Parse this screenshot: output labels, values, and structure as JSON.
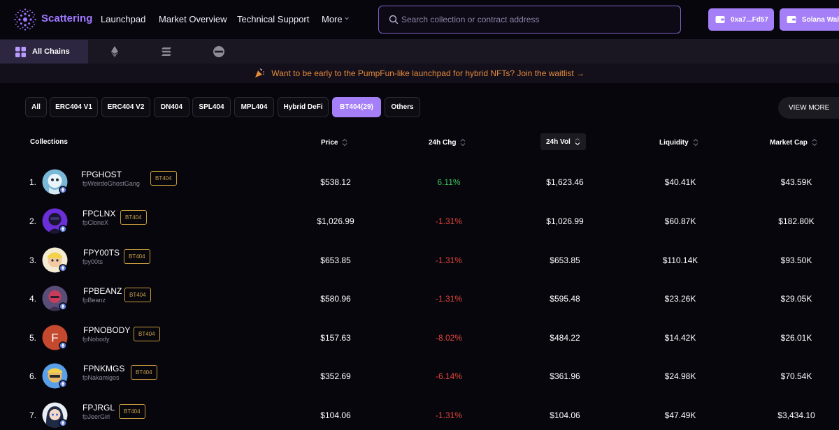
{
  "header": {
    "brand": "Scattering",
    "nav": [
      "Launchpad",
      "Market Overview",
      "Technical Support",
      "More"
    ],
    "search": {
      "placeholder": "Search collection or contract address",
      "value": ""
    },
    "wallet_label": "0xa7...Fd57",
    "solana_label": "Solana Wallet",
    "accent": "#a57ff8"
  },
  "chains": {
    "all_label": "All Chains",
    "icons": [
      "ethereum-icon",
      "solana-icon",
      "other-chain-icon"
    ]
  },
  "banner": {
    "icon": "party-popper-icon",
    "text": "Want to be early to the PumpFun-like launchpad for hybrid NFTs? Join the waitlist →"
  },
  "filters": [
    "All",
    "ERC404 V1",
    "ERC404 V2",
    "DN404",
    "SPL404",
    "MPL404",
    "Hybrid DeFi",
    "BT404(29)",
    "Others"
  ],
  "active_filter": "BT404(29)",
  "view_more_label": "VIEW MORE",
  "table": {
    "columns": [
      "Collections",
      "Price",
      "24h Chg",
      "24h Vol",
      "Liquidity",
      "Market Cap"
    ],
    "sorted_column": "24h Vol",
    "rows": [
      {
        "rank": "1.",
        "name": "FPGHOST",
        "sub": "fpWeirdoGhostGang",
        "badge": "BT404",
        "price": "$538.12",
        "change": "6.11%",
        "volume": "$1,623.46",
        "liquidity": "$40.41K",
        "mcap": "$43.59K"
      },
      {
        "rank": "2.",
        "name": "FPCLNX",
        "sub": "fpCloneX",
        "badge": "BT404",
        "price": "$1,026.99",
        "change": "-1.31%",
        "volume": "$1,026.99",
        "liquidity": "$60.87K",
        "mcap": "$182.80K"
      },
      {
        "rank": "3.",
        "name": "FPY00TS",
        "sub": "fpy00ts",
        "badge": "BT404",
        "price": "$653.85",
        "change": "-1.31%",
        "volume": "$653.85",
        "liquidity": "$110.14K",
        "mcap": "$93.50K"
      },
      {
        "rank": "4.",
        "name": "FPBEANZ",
        "sub": "fpBeanz",
        "badge": "BT404",
        "price": "$580.96",
        "change": "-1.31%",
        "volume": "$595.48",
        "liquidity": "$23.26K",
        "mcap": "$29.05K"
      },
      {
        "rank": "5.",
        "name": "FPNOBODY",
        "sub": "fpNobody",
        "badge": "BT404",
        "avatar_letter": "F",
        "price": "$157.63",
        "change": "-8.02%",
        "volume": "$484.22",
        "liquidity": "$14.42K",
        "mcap": "$26.01K"
      },
      {
        "rank": "6.",
        "name": "FPNKMGS",
        "sub": "fpNakamigos",
        "badge": "BT404",
        "price": "$352.69",
        "change": "-6.14%",
        "volume": "$361.96",
        "liquidity": "$24.98K",
        "mcap": "$70.54K"
      },
      {
        "rank": "7.",
        "name": "FPJRGL",
        "sub": "fpJeerGirl",
        "badge": "BT404",
        "price": "$104.06",
        "change": "-1.31%",
        "volume": "$104.06",
        "liquidity": "$47.49K",
        "mcap": "$3,434.10"
      }
    ]
  },
  "colors": {
    "positive": "#3fc55a",
    "negative": "#e2443a",
    "badge": "#c9a24a"
  }
}
